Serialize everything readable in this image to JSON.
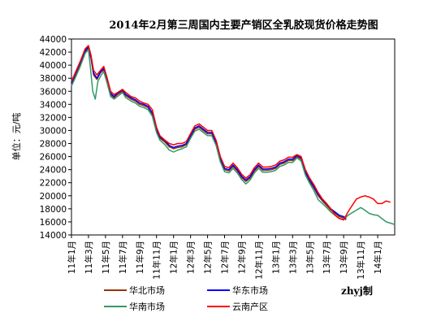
{
  "chart_data": {
    "type": "line",
    "title": "2014年2月第三周国内主要产销区全乳胶现货价格走势图",
    "ylabel": "单位：元/吨",
    "ylim": [
      14000,
      44000
    ],
    "yticks": [
      "14000",
      "16000",
      "18000",
      "20000",
      "22000",
      "24000",
      "26000",
      "28000",
      "30000",
      "32000",
      "34000",
      "36000",
      "38000",
      "40000",
      "42000",
      "44000"
    ],
    "xlim": [
      0,
      38
    ],
    "xticks": [
      "11年1月",
      "11年3月",
      "11年5月",
      "11年7月",
      "11年9月",
      "11年11月",
      "12年1月",
      "12年3月",
      "12年5月",
      "12年7月",
      "12年9月",
      "12年11月",
      "13年1月",
      "13年3月",
      "13年5月",
      "13年7月",
      "13年9月",
      "13年11月",
      "14年1月"
    ],
    "grid": false,
    "legend": "bottom",
    "credit": "zhyj制",
    "series": [
      {
        "name": "华北市场",
        "color": "#993300",
        "points": [
          [
            0,
            37000
          ],
          [
            0.5,
            38500
          ],
          [
            1,
            40000
          ],
          [
            1.6,
            42000
          ],
          [
            2,
            42600
          ],
          [
            2.3,
            41000
          ],
          [
            2.6,
            38500
          ],
          [
            3,
            37800
          ],
          [
            3.4,
            38800
          ],
          [
            3.8,
            39300
          ],
          [
            4.2,
            37500
          ],
          [
            4.6,
            35500
          ],
          [
            5,
            35000
          ],
          [
            5.4,
            35500
          ],
          [
            6,
            36000
          ],
          [
            6.4,
            35300
          ],
          [
            7,
            34800
          ],
          [
            7.5,
            34500
          ],
          [
            8,
            34000
          ],
          [
            8.5,
            33800
          ],
          [
            9,
            33500
          ],
          [
            9.5,
            32500
          ],
          [
            10,
            30000
          ],
          [
            10.4,
            28800
          ],
          [
            11,
            28200
          ],
          [
            11.5,
            27500
          ],
          [
            12,
            27200
          ],
          [
            12.5,
            27400
          ],
          [
            13,
            27500
          ],
          [
            13.5,
            27800
          ],
          [
            14,
            29000
          ],
          [
            14.5,
            30200
          ],
          [
            15,
            30500
          ],
          [
            15.5,
            30000
          ],
          [
            16,
            29500
          ],
          [
            16.5,
            29500
          ],
          [
            17,
            28000
          ],
          [
            17.5,
            25500
          ],
          [
            18,
            24000
          ],
          [
            18.5,
            23800
          ],
          [
            19,
            24500
          ],
          [
            19.5,
            23800
          ],
          [
            20,
            22800
          ],
          [
            20.5,
            22200
          ],
          [
            21,
            22700
          ],
          [
            21.5,
            23800
          ],
          [
            22,
            24500
          ],
          [
            22.5,
            23900
          ],
          [
            23,
            23900
          ],
          [
            23.5,
            24000
          ],
          [
            24,
            24200
          ],
          [
            24.5,
            24800
          ],
          [
            25,
            25000
          ],
          [
            25.5,
            25400
          ],
          [
            26,
            25400
          ],
          [
            26.5,
            26000
          ],
          [
            27,
            25600
          ],
          [
            27.5,
            23500
          ],
          [
            28,
            22200
          ],
          [
            28.5,
            21200
          ],
          [
            29,
            20000
          ],
          [
            29.5,
            19200
          ],
          [
            30,
            18500
          ],
          [
            30.5,
            17800
          ],
          [
            31,
            17300
          ],
          [
            31.5,
            16800
          ],
          [
            32,
            16600
          ],
          [
            32.3,
            16300
          ]
        ]
      },
      {
        "name": "华东市场",
        "color": "#0000ff",
        "points": [
          [
            0,
            37200
          ],
          [
            0.5,
            38800
          ],
          [
            1,
            40300
          ],
          [
            1.6,
            42200
          ],
          [
            2,
            42800
          ],
          [
            2.3,
            41200
          ],
          [
            2.6,
            38800
          ],
          [
            3,
            38000
          ],
          [
            3.4,
            39000
          ],
          [
            3.8,
            39500
          ],
          [
            4.2,
            37700
          ],
          [
            4.6,
            35700
          ],
          [
            5,
            35200
          ],
          [
            5.4,
            35700
          ],
          [
            6,
            36200
          ],
          [
            6.4,
            35500
          ],
          [
            7,
            35000
          ],
          [
            7.5,
            34700
          ],
          [
            8,
            34200
          ],
          [
            8.5,
            34000
          ],
          [
            9,
            33700
          ],
          [
            9.5,
            32700
          ],
          [
            10,
            30200
          ],
          [
            10.4,
            29000
          ],
          [
            11,
            28400
          ],
          [
            11.5,
            27700
          ],
          [
            12,
            27400
          ],
          [
            12.5,
            27600
          ],
          [
            13,
            27700
          ],
          [
            13.5,
            28000
          ],
          [
            14,
            29200
          ],
          [
            14.5,
            30400
          ],
          [
            15,
            30700
          ],
          [
            15.5,
            30200
          ],
          [
            16,
            29700
          ],
          [
            16.5,
            29700
          ],
          [
            17,
            28200
          ],
          [
            17.5,
            25700
          ],
          [
            18,
            24200
          ],
          [
            18.5,
            24000
          ],
          [
            19,
            24700
          ],
          [
            19.5,
            24000
          ],
          [
            20,
            23000
          ],
          [
            20.5,
            22400
          ],
          [
            21,
            22900
          ],
          [
            21.5,
            24000
          ],
          [
            22,
            24700
          ],
          [
            22.5,
            24100
          ],
          [
            23,
            24100
          ],
          [
            23.5,
            24200
          ],
          [
            24,
            24400
          ],
          [
            24.5,
            25000
          ],
          [
            25,
            25200
          ],
          [
            25.5,
            25600
          ],
          [
            26,
            25600
          ],
          [
            26.5,
            26200
          ],
          [
            27,
            25800
          ],
          [
            27.5,
            23700
          ],
          [
            28,
            22400
          ],
          [
            28.5,
            21400
          ],
          [
            29,
            20200
          ],
          [
            29.5,
            19400
          ],
          [
            30,
            18700
          ],
          [
            30.5,
            18000
          ],
          [
            31,
            17500
          ],
          [
            31.5,
            17000
          ],
          [
            32,
            16800
          ],
          [
            32.3,
            16500
          ]
        ]
      },
      {
        "name": "华南市场",
        "color": "#339966",
        "points": [
          [
            0,
            36800
          ],
          [
            0.5,
            38200
          ],
          [
            1,
            39700
          ],
          [
            1.6,
            41800
          ],
          [
            2,
            42400
          ],
          [
            2.2,
            40000
          ],
          [
            2.5,
            36000
          ],
          [
            2.8,
            34800
          ],
          [
            3.1,
            37500
          ],
          [
            3.5,
            38500
          ],
          [
            3.8,
            39000
          ],
          [
            4.2,
            37200
          ],
          [
            4.6,
            35200
          ],
          [
            5,
            34800
          ],
          [
            5.4,
            35200
          ],
          [
            6,
            35800
          ],
          [
            6.4,
            35000
          ],
          [
            7,
            34500
          ],
          [
            7.5,
            34200
          ],
          [
            8,
            33700
          ],
          [
            8.5,
            33500
          ],
          [
            9,
            33200
          ],
          [
            9.5,
            32200
          ],
          [
            10,
            29700
          ],
          [
            10.4,
            28500
          ],
          [
            11,
            27800
          ],
          [
            11.5,
            27000
          ],
          [
            12,
            26700
          ],
          [
            12.5,
            27000
          ],
          [
            13,
            27200
          ],
          [
            13.5,
            27500
          ],
          [
            14,
            28800
          ],
          [
            14.5,
            29900
          ],
          [
            15,
            30200
          ],
          [
            15.5,
            29700
          ],
          [
            16,
            29200
          ],
          [
            16.5,
            29200
          ],
          [
            17,
            27700
          ],
          [
            17.5,
            25200
          ],
          [
            18,
            23700
          ],
          [
            18.5,
            23500
          ],
          [
            19,
            24200
          ],
          [
            19.5,
            23500
          ],
          [
            20,
            22500
          ],
          [
            20.5,
            21800
          ],
          [
            21,
            22400
          ],
          [
            21.5,
            23500
          ],
          [
            22,
            24200
          ],
          [
            22.5,
            23600
          ],
          [
            23,
            23600
          ],
          [
            23.5,
            23700
          ],
          [
            24,
            23900
          ],
          [
            24.5,
            24500
          ],
          [
            25,
            24700
          ],
          [
            25.5,
            25100
          ],
          [
            26,
            25100
          ],
          [
            26.5,
            25800
          ],
          [
            27,
            25300
          ],
          [
            27.5,
            23200
          ],
          [
            28,
            21900
          ],
          [
            28.5,
            20800
          ],
          [
            29,
            19400
          ],
          [
            29.5,
            18800
          ],
          [
            30,
            18200
          ],
          [
            30.5,
            17500
          ],
          [
            31,
            17000
          ],
          [
            31.5,
            16500
          ],
          [
            32,
            16400
          ],
          [
            32.5,
            17000
          ],
          [
            33,
            17400
          ],
          [
            33.5,
            17800
          ],
          [
            34,
            18200
          ],
          [
            34.5,
            17800
          ],
          [
            35,
            17300
          ],
          [
            35.5,
            17100
          ],
          [
            36,
            17000
          ],
          [
            36.5,
            16500
          ],
          [
            37,
            16000
          ],
          [
            37.5,
            15800
          ],
          [
            38,
            15600
          ]
        ]
      },
      {
        "name": "云南产区",
        "color": "#ff0000",
        "points": [
          [
            0,
            37500
          ],
          [
            0.5,
            39000
          ],
          [
            1,
            40500
          ],
          [
            1.6,
            42500
          ],
          [
            2,
            43000
          ],
          [
            2.3,
            41500
          ],
          [
            2.6,
            39200
          ],
          [
            3,
            38500
          ],
          [
            3.4,
            39200
          ],
          [
            3.8,
            39800
          ],
          [
            4.2,
            38000
          ],
          [
            4.6,
            36000
          ],
          [
            5,
            35500
          ],
          [
            5.4,
            35800
          ],
          [
            6,
            36300
          ],
          [
            6.4,
            35800
          ],
          [
            7,
            35200
          ],
          [
            7.5,
            35000
          ],
          [
            8,
            34500
          ],
          [
            8.5,
            34200
          ],
          [
            9,
            34000
          ],
          [
            9.5,
            33200
          ],
          [
            10,
            30500
          ],
          [
            10.4,
            29200
          ],
          [
            11,
            28500
          ],
          [
            11.5,
            28000
          ],
          [
            12,
            27800
          ],
          [
            12.5,
            28000
          ],
          [
            13,
            28000
          ],
          [
            13.5,
            28300
          ],
          [
            14,
            29500
          ],
          [
            14.5,
            30700
          ],
          [
            15,
            31000
          ],
          [
            15.5,
            30500
          ],
          [
            16,
            30000
          ],
          [
            16.5,
            30000
          ],
          [
            17,
            28500
          ],
          [
            17.5,
            26000
          ],
          [
            18,
            24500
          ],
          [
            18.5,
            24300
          ],
          [
            19,
            25000
          ],
          [
            19.5,
            24300
          ],
          [
            20,
            23300
          ],
          [
            20.5,
            22700
          ],
          [
            21,
            23200
          ],
          [
            21.5,
            24300
          ],
          [
            22,
            25000
          ],
          [
            22.5,
            24400
          ],
          [
            23,
            24400
          ],
          [
            23.5,
            24500
          ],
          [
            24,
            24700
          ],
          [
            24.5,
            25300
          ],
          [
            25,
            25500
          ],
          [
            25.5,
            25900
          ],
          [
            26,
            25900
          ],
          [
            26.5,
            26300
          ],
          [
            27,
            26000
          ],
          [
            27.5,
            24000
          ],
          [
            28,
            22700
          ],
          [
            28.5,
            21700
          ],
          [
            29,
            20500
          ],
          [
            29.5,
            19500
          ],
          [
            30,
            18800
          ],
          [
            30.5,
            18000
          ],
          [
            31,
            17000
          ],
          [
            31.5,
            16500
          ],
          [
            32,
            16300
          ],
          [
            32.5,
            17500
          ],
          [
            33,
            18500
          ],
          [
            33.5,
            19500
          ],
          [
            34,
            19800
          ],
          [
            34.5,
            20000
          ],
          [
            35,
            19800
          ],
          [
            35.5,
            19500
          ],
          [
            36,
            18800
          ],
          [
            36.5,
            18800
          ],
          [
            37,
            19200
          ],
          [
            37.5,
            19000
          ]
        ]
      }
    ]
  }
}
